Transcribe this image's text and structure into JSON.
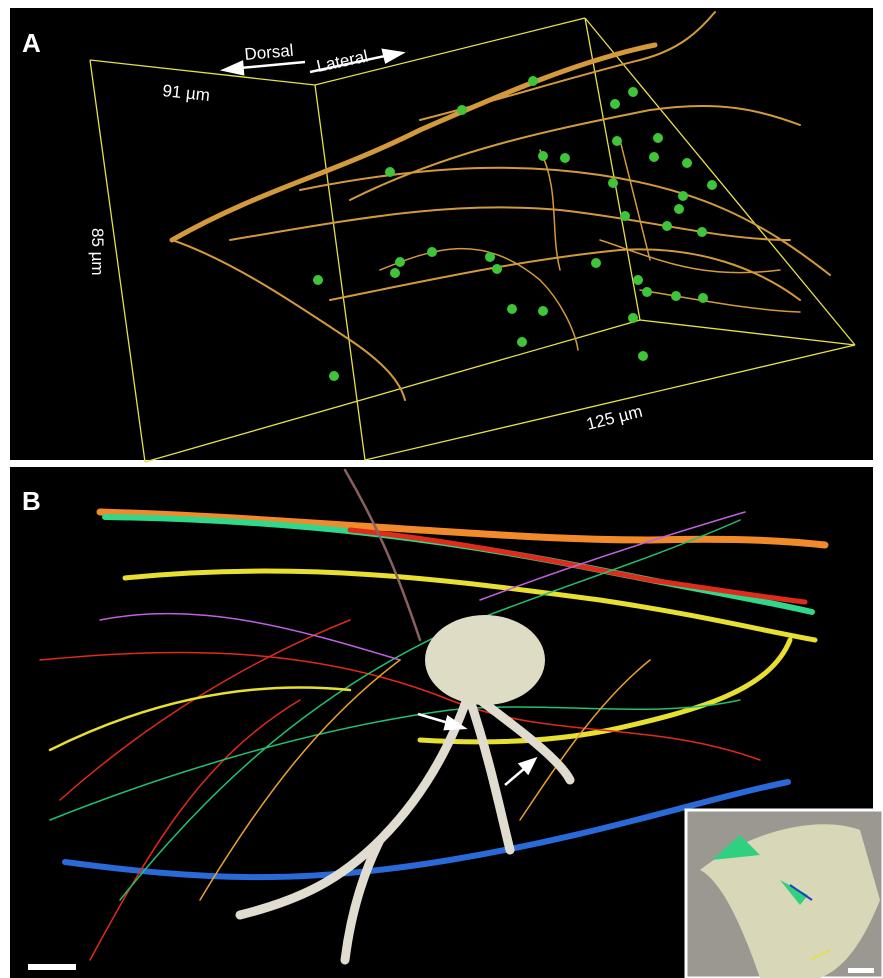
{
  "panels": [
    {
      "label": "A",
      "annotations": {
        "dorsal": "Dorsal",
        "lateral": "Lateral",
        "width": "91 µm",
        "height": "85 µm",
        "depth": "125 µm"
      }
    },
    {
      "label": "B"
    }
  ]
}
